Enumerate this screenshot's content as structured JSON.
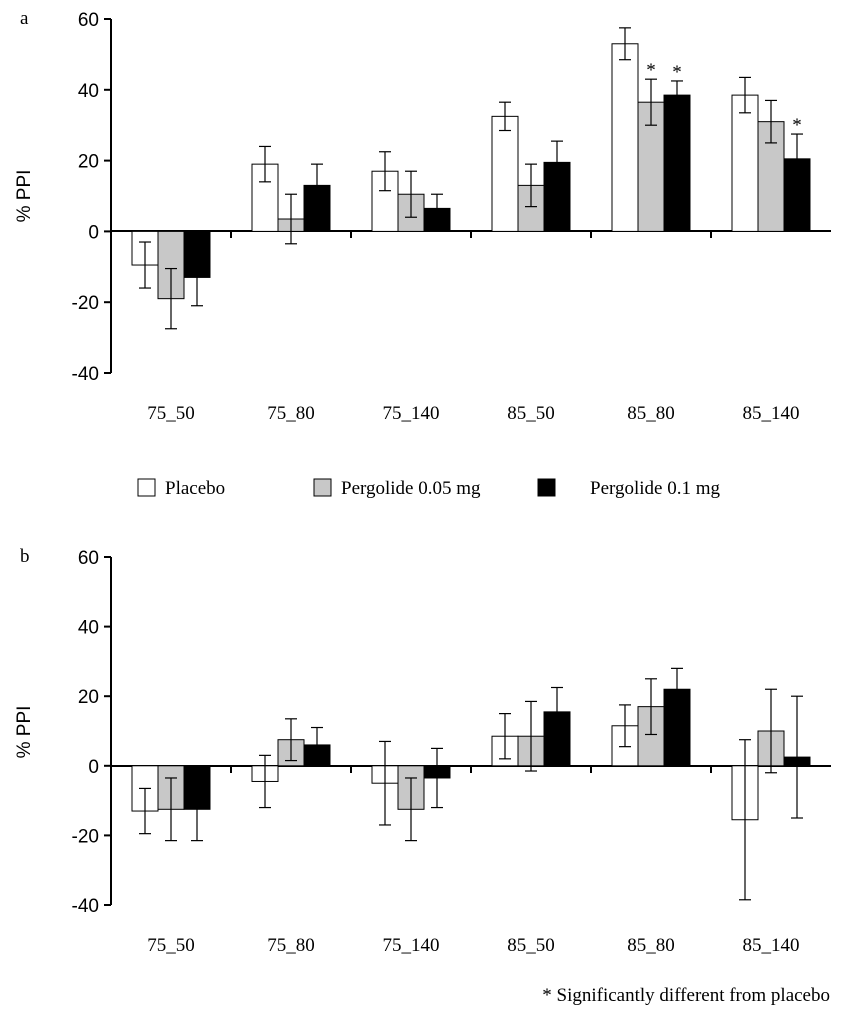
{
  "colors": {
    "placebo": "#ffffff",
    "pergolide_005": "#c8c8c8",
    "pergolide_01": "#000000",
    "stroke": "#000000"
  },
  "legend": {
    "items": [
      {
        "label": "Placebo",
        "color": "#ffffff"
      },
      {
        "label": "Pergolide 0.05 mg",
        "color": "#c8c8c8"
      },
      {
        "label": "Pergolide 0.1 mg",
        "color": "#000000"
      }
    ]
  },
  "footnote": "* Significantly different from placebo",
  "chart_data": [
    {
      "type": "bar",
      "panel_label": "a",
      "ylabel": "% PPI",
      "ylim": [
        -40,
        60
      ],
      "yticks": [
        "60",
        "40",
        "20",
        "0",
        "-20",
        "-40"
      ],
      "categories": [
        "75_50",
        "75_80",
        "75_140",
        "85_50",
        "85_80",
        "85_140"
      ],
      "series": [
        {
          "name": "Placebo",
          "values": [
            -9.5,
            19,
            17,
            32.5,
            53,
            38.5
          ],
          "errors": [
            6.5,
            5,
            5.5,
            4,
            4.5,
            5
          ],
          "significant": [
            false,
            false,
            false,
            false,
            false,
            false
          ]
        },
        {
          "name": "Pergolide 0.05 mg",
          "values": [
            -19,
            3.5,
            10.5,
            13,
            36.5,
            31
          ],
          "errors": [
            8.5,
            7,
            6.5,
            6,
            6.5,
            6
          ],
          "significant": [
            false,
            false,
            false,
            false,
            true,
            false
          ]
        },
        {
          "name": "Pergolide 0.1 mg",
          "values": [
            -13,
            13,
            6.5,
            19.5,
            38.5,
            20.5
          ],
          "errors": [
            8,
            6,
            4,
            6,
            4,
            7
          ],
          "significant": [
            false,
            false,
            false,
            false,
            true,
            true
          ]
        }
      ]
    },
    {
      "type": "bar",
      "panel_label": "b",
      "ylabel": "% PPI",
      "ylim": [
        -40,
        60
      ],
      "yticks": [
        "60",
        "40",
        "20",
        "0",
        "-20",
        "-40"
      ],
      "categories": [
        "75_50",
        "75_80",
        "75_140",
        "85_50",
        "85_80",
        "85_140"
      ],
      "series": [
        {
          "name": "Placebo",
          "values": [
            -13,
            -4.5,
            -5,
            8.5,
            11.5,
            -15.5
          ],
          "errors": [
            6.5,
            7.5,
            12,
            6.5,
            6,
            23
          ],
          "significant": [
            false,
            false,
            false,
            false,
            false,
            false
          ]
        },
        {
          "name": "Pergolide 0.05 mg",
          "values": [
            -12.5,
            7.5,
            -12.5,
            8.5,
            17,
            10
          ],
          "errors": [
            9,
            6,
            9,
            10,
            8,
            12
          ],
          "significant": [
            false,
            false,
            false,
            false,
            false,
            false
          ]
        },
        {
          "name": "Pergolide 0.1 mg",
          "values": [
            -12.5,
            6,
            -3.5,
            15.5,
            22,
            2.5
          ],
          "errors": [
            9,
            5,
            8.5,
            7,
            6,
            17.5
          ],
          "significant": [
            false,
            false,
            false,
            false,
            false,
            false
          ]
        }
      ]
    }
  ]
}
